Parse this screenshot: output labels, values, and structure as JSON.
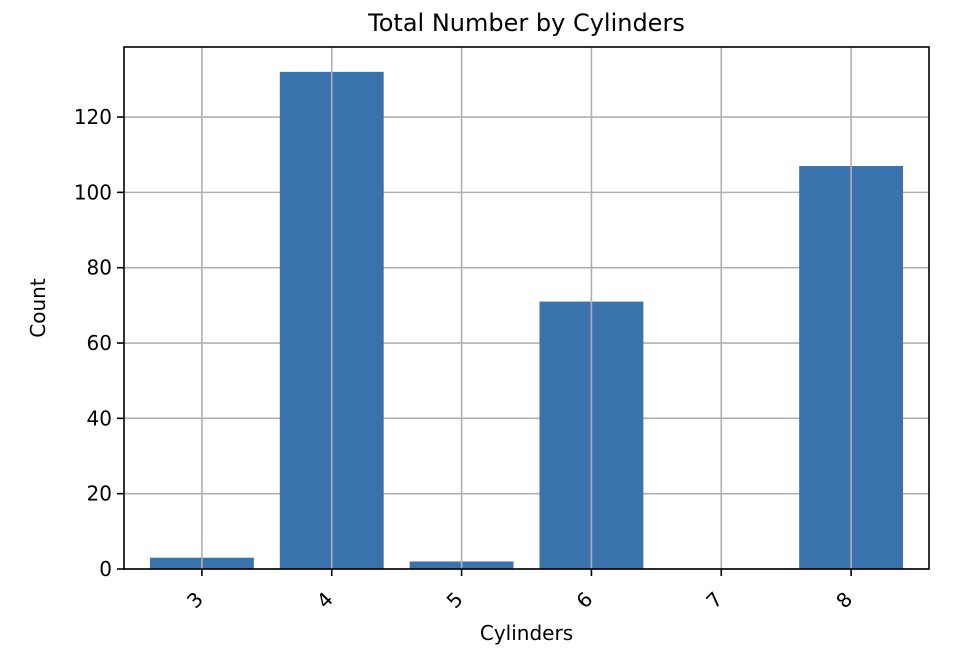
{
  "chart_data": {
    "type": "bar",
    "title": "Total Number by Cylinders",
    "xlabel": "Cylinders",
    "ylabel": "Count",
    "categories": [
      "3",
      "4",
      "5",
      "6",
      "7",
      "8"
    ],
    "values": [
      3,
      132,
      2,
      71,
      0,
      107
    ],
    "ylim": [
      0,
      138.6
    ],
    "yticks": [
      0,
      20,
      40,
      60,
      80,
      100,
      120
    ],
    "xtick_rotation_deg": 45,
    "grid": true,
    "legend": "none",
    "bar_color": "#3a72ae"
  }
}
